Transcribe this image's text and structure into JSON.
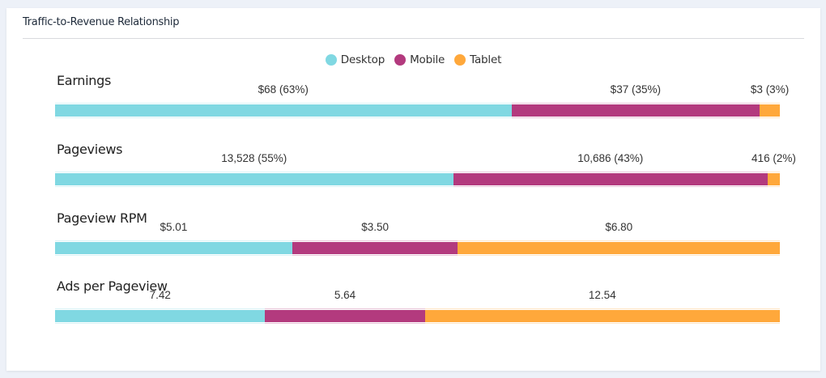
{
  "card": {
    "title": "Traffic-to-Revenue Relationship"
  },
  "legend": [
    {
      "label": "Desktop",
      "color": "#80d8e2"
    },
    {
      "label": "Mobile",
      "color": "#b33a7e"
    },
    {
      "label": "Tablet",
      "color": "#ffa83b"
    }
  ],
  "chart_data": {
    "type": "bar",
    "subtype": "stacked-horizontal-100",
    "title": "Traffic-to-Revenue Relationship",
    "legend_position": "top-center",
    "series_names": [
      "Desktop",
      "Mobile",
      "Tablet"
    ],
    "colors": [
      "#80d8e2",
      "#b33a7e",
      "#ffa83b"
    ],
    "metrics": [
      {
        "name": "Earnings",
        "values": [
          68,
          37,
          3
        ],
        "labels": [
          "$68 (63%)",
          "$37 (35%)",
          "$3 (3%)"
        ]
      },
      {
        "name": "Pageviews",
        "values": [
          13528,
          10686,
          416
        ],
        "labels": [
          "13,528 (55%)",
          "10,686 (43%)",
          "416 (2%)"
        ]
      },
      {
        "name": "Pageview RPM",
        "values": [
          5.01,
          3.5,
          6.8
        ],
        "labels": [
          "$5.01",
          "$3.50",
          "$6.80"
        ]
      },
      {
        "name": "Ads per Pageview",
        "values": [
          7.42,
          5.64,
          12.54
        ],
        "labels": [
          "7.42",
          "5.64",
          "12.54"
        ]
      }
    ]
  }
}
